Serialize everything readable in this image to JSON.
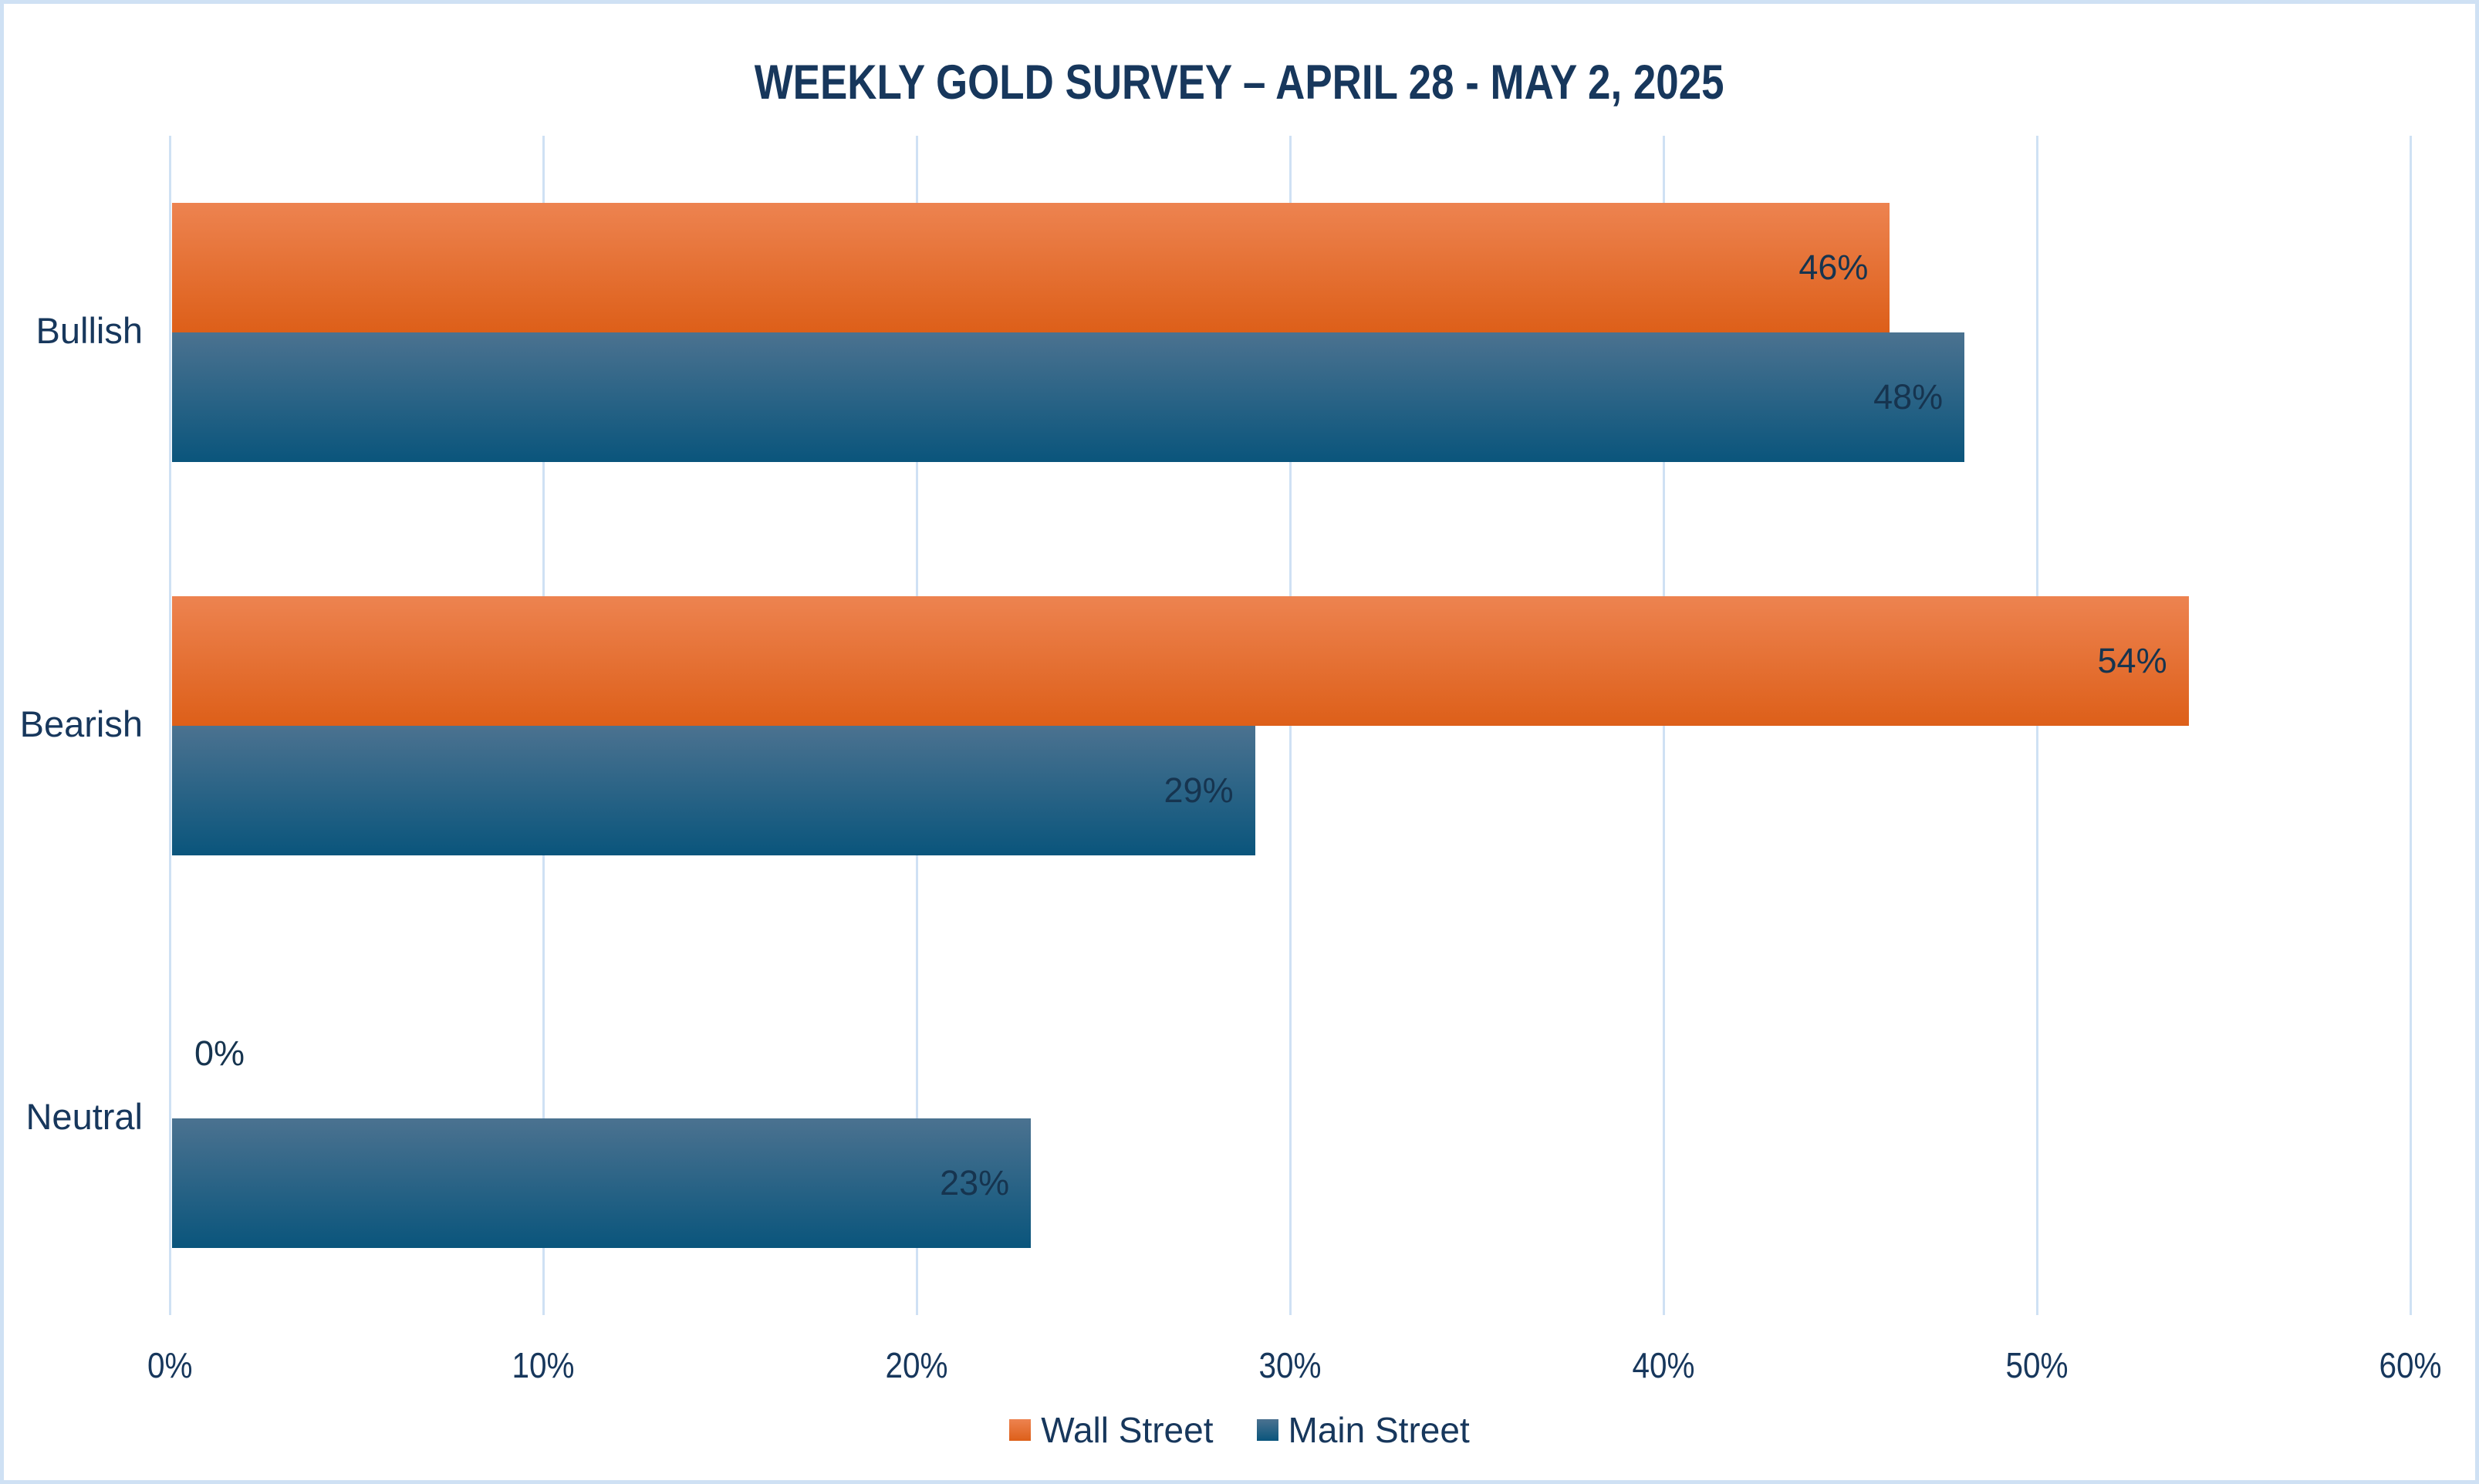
{
  "title": "WEEKLY GOLD SURVEY – APRIL 28 - MAY 2, 2025",
  "colors": {
    "title_text": "#17375c",
    "axis_text": "#17375c",
    "data_label_text": "#16344f",
    "gridline": "#cfe1f4",
    "frame_border": "#cfe1f4",
    "background": "#ffffff",
    "wall_street_top": "#ed8350",
    "wall_street_bottom": "#dd5f19",
    "main_street_top": "#4b7290",
    "main_street_bottom": "#0a557c"
  },
  "chart_data": {
    "type": "bar",
    "orientation": "horizontal",
    "title": "WEEKLY GOLD SURVEY – APRIL 28 - MAY 2, 2025",
    "categories": [
      "Bullish",
      "Bearish",
      "Neutral"
    ],
    "series": [
      {
        "name": "Wall Street",
        "values": [
          46,
          54,
          0
        ],
        "labels": [
          "46%",
          "54%",
          "0%"
        ],
        "color_top": "#ed8350",
        "color_bottom": "#dd5f19"
      },
      {
        "name": "Main Street",
        "values": [
          48,
          29,
          23
        ],
        "labels": [
          "48%",
          "29%",
          "23%"
        ],
        "color_top": "#4b7290",
        "color_bottom": "#0a557c"
      }
    ],
    "value_suffix": "%",
    "xlabel": "",
    "ylabel": "",
    "xlim": [
      0,
      60
    ],
    "xticks": [
      0,
      10,
      20,
      30,
      40,
      50,
      60
    ],
    "xtick_labels": [
      "0%",
      "10%",
      "20%",
      "30%",
      "40%",
      "50%",
      "60%"
    ],
    "grid": true,
    "legend_position": "bottom"
  }
}
